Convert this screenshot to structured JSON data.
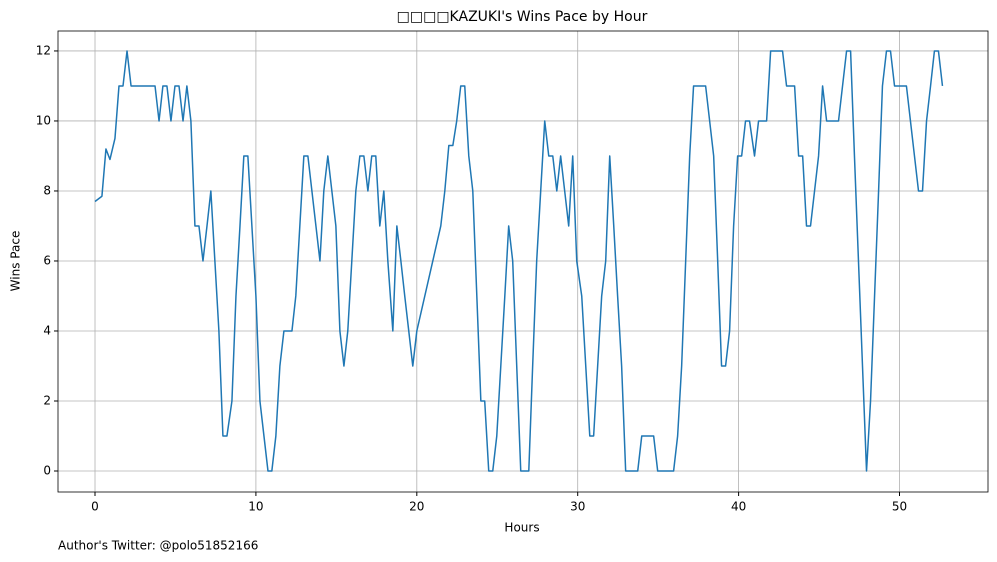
{
  "chart_data": {
    "type": "line",
    "title": "□□□□KAZUKI's Wins Pace by Hour",
    "x_label": "Hours",
    "y_label": "Wins Pace",
    "annotation": "Author's Twitter: @polo51852166",
    "xlim": [
      -2.3,
      55.5
    ],
    "ylim": [
      -0.6,
      12.57
    ],
    "xticks": [
      0,
      10,
      20,
      30,
      40,
      50
    ],
    "yticks": [
      0,
      2,
      4,
      6,
      8,
      10,
      12
    ],
    "grid": true,
    "x": [
      0.0,
      0.43,
      0.68,
      0.93,
      1.24,
      1.49,
      1.74,
      1.99,
      2.24,
      3.73,
      3.98,
      4.22,
      4.47,
      4.72,
      4.97,
      5.22,
      5.47,
      5.71,
      5.96,
      6.21,
      6.46,
      6.71,
      6.96,
      7.2,
      7.45,
      7.7,
      7.95,
      8.2,
      8.51,
      8.76,
      9.01,
      9.25,
      9.5,
      9.75,
      10.0,
      10.25,
      10.5,
      10.75,
      10.99,
      11.24,
      11.49,
      11.74,
      12.24,
      12.48,
      12.73,
      12.98,
      13.23,
      13.48,
      13.73,
      13.98,
      14.22,
      14.47,
      14.72,
      14.97,
      15.22,
      15.47,
      15.71,
      15.96,
      16.21,
      16.46,
      16.71,
      16.96,
      17.2,
      17.45,
      17.7,
      17.95,
      18.2,
      18.51,
      18.76,
      19.01,
      19.25,
      19.5,
      19.75,
      20.0,
      21.49,
      21.74,
      21.99,
      22.24,
      22.48,
      22.73,
      22.98,
      23.23,
      23.48,
      23.73,
      23.98,
      24.22,
      24.47,
      24.72,
      24.97,
      25.22,
      25.47,
      25.71,
      25.96,
      26.21,
      26.46,
      26.96,
      27.2,
      27.45,
      27.7,
      27.95,
      28.2,
      28.45,
      28.7,
      28.94,
      29.19,
      29.44,
      29.69,
      29.94,
      30.25,
      30.5,
      30.75,
      30.99,
      31.24,
      31.49,
      31.74,
      31.99,
      32.24,
      32.48,
      32.73,
      32.98,
      33.73,
      33.98,
      34.72,
      34.97,
      35.96,
      36.21,
      36.46,
      36.71,
      36.96,
      37.2,
      37.95,
      38.2,
      38.45,
      38.7,
      38.94,
      39.19,
      39.44,
      39.69,
      39.94,
      40.19,
      40.43,
      40.68,
      40.99,
      41.24,
      41.74,
      41.99,
      42.73,
      42.98,
      43.48,
      43.73,
      43.98,
      44.22,
      44.47,
      44.72,
      44.97,
      45.22,
      45.47,
      46.21,
      46.46,
      46.71,
      46.96,
      47.2,
      47.45,
      47.7,
      47.95,
      48.2,
      48.45,
      48.7,
      48.94,
      49.19,
      49.44,
      49.69,
      50.43,
      50.68,
      50.93,
      51.18,
      51.43,
      51.68,
      51.93,
      52.17,
      52.42,
      52.67
    ],
    "series": [
      {
        "color": "#1f77b4",
        "values": [
          7.7,
          7.85,
          9.2,
          8.9,
          9.5,
          11,
          11,
          12,
          11,
          11,
          10,
          11,
          11,
          10,
          11,
          11,
          10,
          11,
          10,
          7,
          7,
          6,
          7,
          8,
          6,
          4,
          1,
          1,
          2,
          5,
          7,
          9,
          9,
          7,
          5,
          2,
          1,
          0,
          0,
          1,
          3,
          4,
          4,
          5,
          7,
          9,
          9,
          8,
          7,
          6,
          8,
          9,
          8,
          7,
          4,
          3,
          4,
          6,
          8,
          9,
          9,
          8,
          9,
          9,
          7,
          8,
          6,
          4,
          7,
          6,
          5,
          4,
          3,
          4,
          7,
          8,
          9.3,
          9.3,
          10,
          11,
          11,
          9,
          8,
          5,
          2,
          2,
          0,
          0,
          1,
          3,
          5,
          7,
          6,
          3,
          0,
          0,
          3,
          6,
          8,
          10,
          9,
          9,
          8,
          9,
          8,
          7,
          9,
          6,
          5,
          3,
          1,
          1,
          3,
          5,
          6,
          9,
          7,
          5,
          3,
          0,
          0,
          1,
          1,
          0,
          0,
          1,
          3,
          6,
          9,
          11,
          11,
          10,
          9,
          6,
          3,
          3,
          4,
          7,
          9,
          9,
          10,
          10,
          9,
          10,
          10,
          12,
          12,
          11,
          11,
          9,
          9,
          7,
          7,
          8,
          9,
          11,
          10,
          10,
          11,
          12,
          12,
          9,
          6,
          3,
          0,
          2,
          5,
          8,
          11,
          12,
          12,
          11,
          11,
          10,
          9,
          8,
          8,
          10,
          11,
          12,
          12,
          11
        ]
      }
    ]
  }
}
